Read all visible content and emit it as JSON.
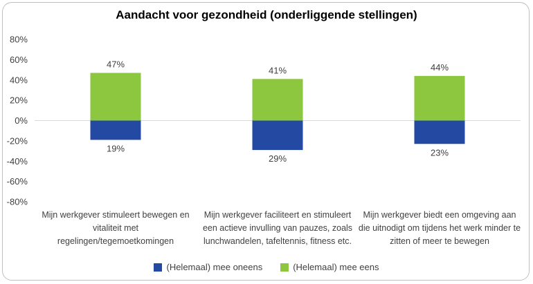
{
  "chart_data": {
    "type": "bar",
    "title": "Aandacht voor gezondheid (onderliggende stellingen)",
    "categories": [
      "Mijn werkgever stimuleert bewegen en vitaliteit met regelingen/tegemoetkomingen",
      "Mijn werkgever faciliteert en stimuleert een actieve invulling van pauzes, zoals lunchwandelen, tafeltennis, fitness etc.",
      "Mijn werkgever biedt een omgeving aan die uitnodigt om tijdens het werk minder te zitten of meer te bewegen"
    ],
    "series": [
      {
        "name": "(Helemaal) mee oneens",
        "values": [
          -19,
          -29,
          -23
        ],
        "labels": [
          "19%",
          "29%",
          "23%"
        ],
        "color": "#2349a3"
      },
      {
        "name": "(Helemaal) mee eens",
        "values": [
          47,
          41,
          44
        ],
        "labels": [
          "47%",
          "41%",
          "44%"
        ],
        "color": "#8dc63f"
      }
    ],
    "ylim": [
      -80,
      80
    ],
    "yticks": [
      "80%",
      "60%",
      "40%",
      "20%",
      "0%",
      "-20%",
      "-40%",
      "-60%",
      "-80%"
    ],
    "stacked": true,
    "legend": "bottom"
  }
}
